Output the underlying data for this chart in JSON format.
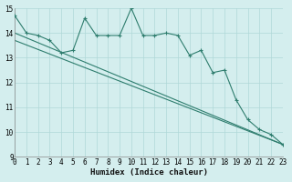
{
  "line1_x": [
    0,
    1,
    2,
    3,
    4,
    5,
    6,
    7,
    8,
    9,
    10,
    11,
    12,
    13,
    14,
    15,
    16,
    17,
    18,
    19,
    20,
    21,
    22,
    23
  ],
  "line1_y": [
    14.7,
    14.0,
    13.9,
    13.7,
    13.2,
    13.3,
    14.6,
    13.9,
    13.9,
    13.9,
    15.0,
    13.9,
    13.9,
    14.0,
    13.9,
    13.1,
    13.3,
    12.4,
    12.5,
    11.3,
    10.5,
    10.1,
    9.9,
    9.5
  ],
  "line2_x": [
    0,
    23
  ],
  "line2_y": [
    14.0,
    9.5
  ],
  "line3_x": [
    0,
    23
  ],
  "line3_y": [
    13.7,
    9.5
  ],
  "line_color": "#2e7d6e",
  "bg_color": "#d4eeee",
  "grid_color": "#afd8d8",
  "xlabel": "Humidex (Indice chaleur)",
  "xlim": [
    0,
    23
  ],
  "ylim": [
    9,
    15
  ],
  "yticks": [
    9,
    10,
    11,
    12,
    13,
    14,
    15
  ],
  "xticks": [
    0,
    1,
    2,
    3,
    4,
    5,
    6,
    7,
    8,
    9,
    10,
    11,
    12,
    13,
    14,
    15,
    16,
    17,
    18,
    19,
    20,
    21,
    22,
    23
  ]
}
